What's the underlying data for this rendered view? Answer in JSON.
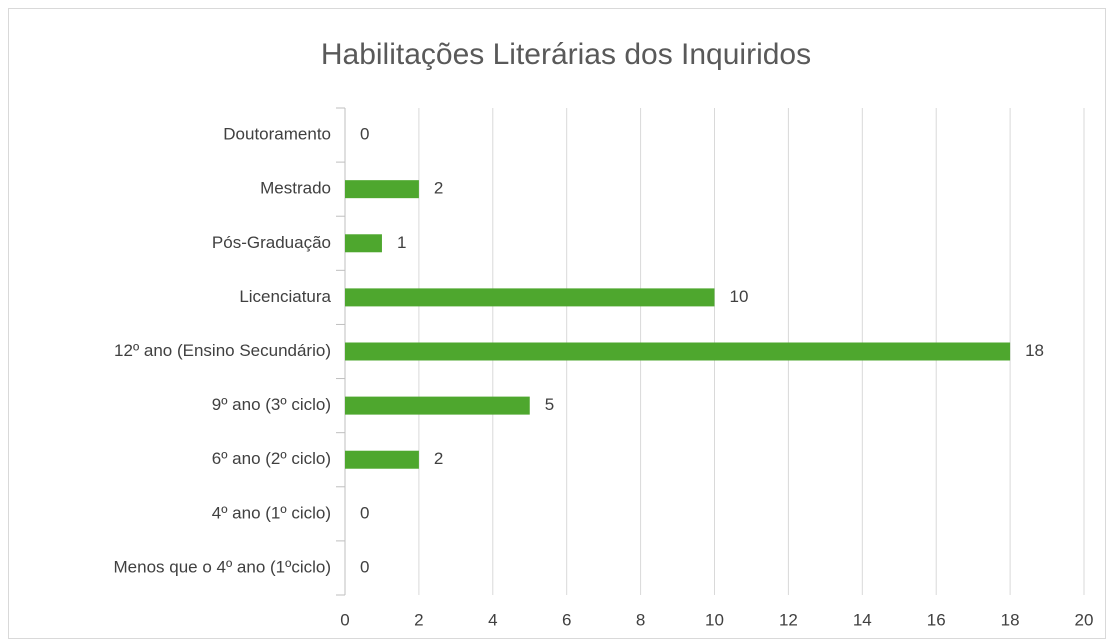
{
  "chart_data": {
    "type": "bar",
    "orientation": "horizontal",
    "title": "Habilitações Literárias dos Inquiridos",
    "categories": [
      "Doutoramento",
      "Mestrado",
      "Pós-Graduação",
      "Licenciatura",
      "12º ano (Ensino Secundário)",
      "9º ano (3º ciclo)",
      "6º ano (2º ciclo)",
      "4º ano (1º ciclo)",
      "Menos que o 4º ano (1ºciclo)"
    ],
    "values": [
      0,
      2,
      1,
      10,
      18,
      5,
      2,
      0,
      0
    ],
    "color": "#4ea72e",
    "xlim": [
      0,
      20
    ],
    "xticks": [
      0,
      2,
      4,
      6,
      8,
      10,
      12,
      14,
      16,
      18,
      20
    ],
    "grid": true
  }
}
